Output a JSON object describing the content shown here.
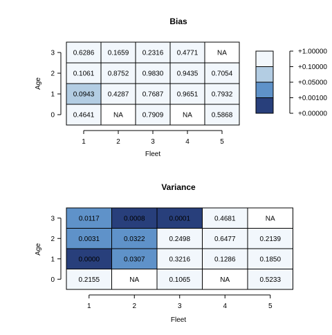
{
  "colors": {
    "band_1": "#f2f7fc",
    "band_2": "#b3cde3",
    "band_3": "#5f92c9",
    "band_4": "#283f7b"
  },
  "chart_data": [
    {
      "type": "heatmap",
      "title": "Bias",
      "xlabel": "Fleet",
      "ylabel": "Age",
      "x": [
        "1",
        "2",
        "3",
        "4",
        "5"
      ],
      "y": [
        "0",
        "1",
        "2",
        "3"
      ],
      "values": [
        [
          0.4641,
          null,
          0.7909,
          null,
          0.5868
        ],
        [
          0.0943,
          0.4287,
          0.7687,
          0.9651,
          0.7932
        ],
        [
          0.1061,
          0.8752,
          0.983,
          0.9435,
          0.7054
        ],
        [
          0.6286,
          0.1659,
          0.2316,
          0.4771,
          null
        ]
      ],
      "labels": [
        [
          "0.4641",
          "NA",
          "0.7909",
          "NA",
          "0.5868"
        ],
        [
          "0.0943",
          "0.4287",
          "0.7687",
          "0.9651",
          "0.7932"
        ],
        [
          "0.1061",
          "0.8752",
          "0.9830",
          "0.9435",
          "0.7054"
        ],
        [
          "0.6286",
          "0.1659",
          "0.2316",
          "0.4771",
          "NA"
        ]
      ],
      "legend": {
        "placement": "right",
        "breaks": [
          "+1.00000",
          "+0.10000",
          "+0.05000",
          "+0.00100",
          "+0.00000"
        ],
        "break_values": [
          1.0,
          0.1,
          0.05,
          0.001,
          0.0
        ]
      }
    },
    {
      "type": "heatmap",
      "title": "Variance",
      "xlabel": "Fleet",
      "ylabel": "Age",
      "x": [
        "1",
        "2",
        "3",
        "4",
        "5"
      ],
      "y": [
        "0",
        "1",
        "2",
        "3"
      ],
      "values": [
        [
          0.2155,
          null,
          0.1065,
          null,
          0.5233
        ],
        [
          0.0,
          0.0307,
          0.3216,
          0.1286,
          0.185
        ],
        [
          0.0031,
          0.0322,
          0.2498,
          0.6477,
          0.2139
        ],
        [
          0.0117,
          0.0008,
          0.0001,
          0.4681,
          null
        ]
      ],
      "labels": [
        [
          "0.2155",
          "NA",
          "0.1065",
          "NA",
          "0.5233"
        ],
        [
          "0.0000",
          "0.0307",
          "0.3216",
          "0.1286",
          "0.1850"
        ],
        [
          "0.0031",
          "0.0322",
          "0.2498",
          "0.6477",
          "0.2139"
        ],
        [
          "0.0117",
          "0.0008",
          "0.0001",
          "0.4681",
          "NA"
        ]
      ]
    }
  ]
}
